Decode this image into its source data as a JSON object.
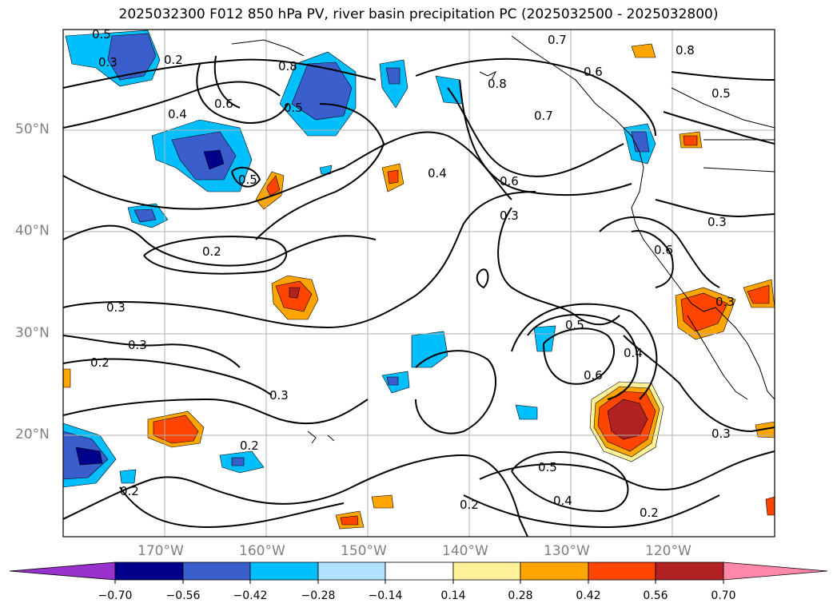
{
  "title": "2025032300 F012 850 hPa PV, river basin precipitation PC (2025032500 - 2025032800)",
  "lat_labels": [
    "50°N",
    "40°N",
    "30°N",
    "20°N"
  ],
  "lon_labels": [
    "170°W",
    "160°W",
    "150°W",
    "140°W",
    "130°W",
    "120°W"
  ],
  "colorbar": {
    "tick_labels": [
      "−0.70",
      "−0.56",
      "−0.42",
      "−0.28",
      "−0.14",
      "0.14",
      "0.28",
      "0.42",
      "0.56",
      "0.70"
    ],
    "colors": [
      "#9932cc",
      "#00008b",
      "#3a5fcd",
      "#00bfff",
      "#b0e2ff",
      "#ffffff",
      "#fff09a",
      "#ffa500",
      "#ff4500",
      "#b22222",
      "#ff88aa"
    ]
  },
  "contour_labels": [
    "0.5",
    "0.3",
    "0.2",
    "0.7",
    "0.8",
    "0.8",
    "0.6",
    "0.8",
    "0.5",
    "0.4",
    "0.6",
    "0.5",
    "0.5",
    "0.7",
    "0.4",
    "0.6",
    "0.3",
    "0.2",
    "0.3",
    "0.3",
    "0.3",
    "0.2",
    "0.3",
    "0.2",
    "0.2",
    "0.5",
    "0.6",
    "0.4",
    "0.5",
    "0.4",
    "0.2",
    "0.2",
    "0.3",
    "0.3",
    "0.6"
  ],
  "map": {
    "projection": "plate carree",
    "extent_lon": [
      -180,
      -110
    ],
    "extent_lat": [
      10,
      60
    ],
    "grid": true,
    "contour_field": "850 hPa PV",
    "fill_field": "river basin precipitation PC"
  }
}
